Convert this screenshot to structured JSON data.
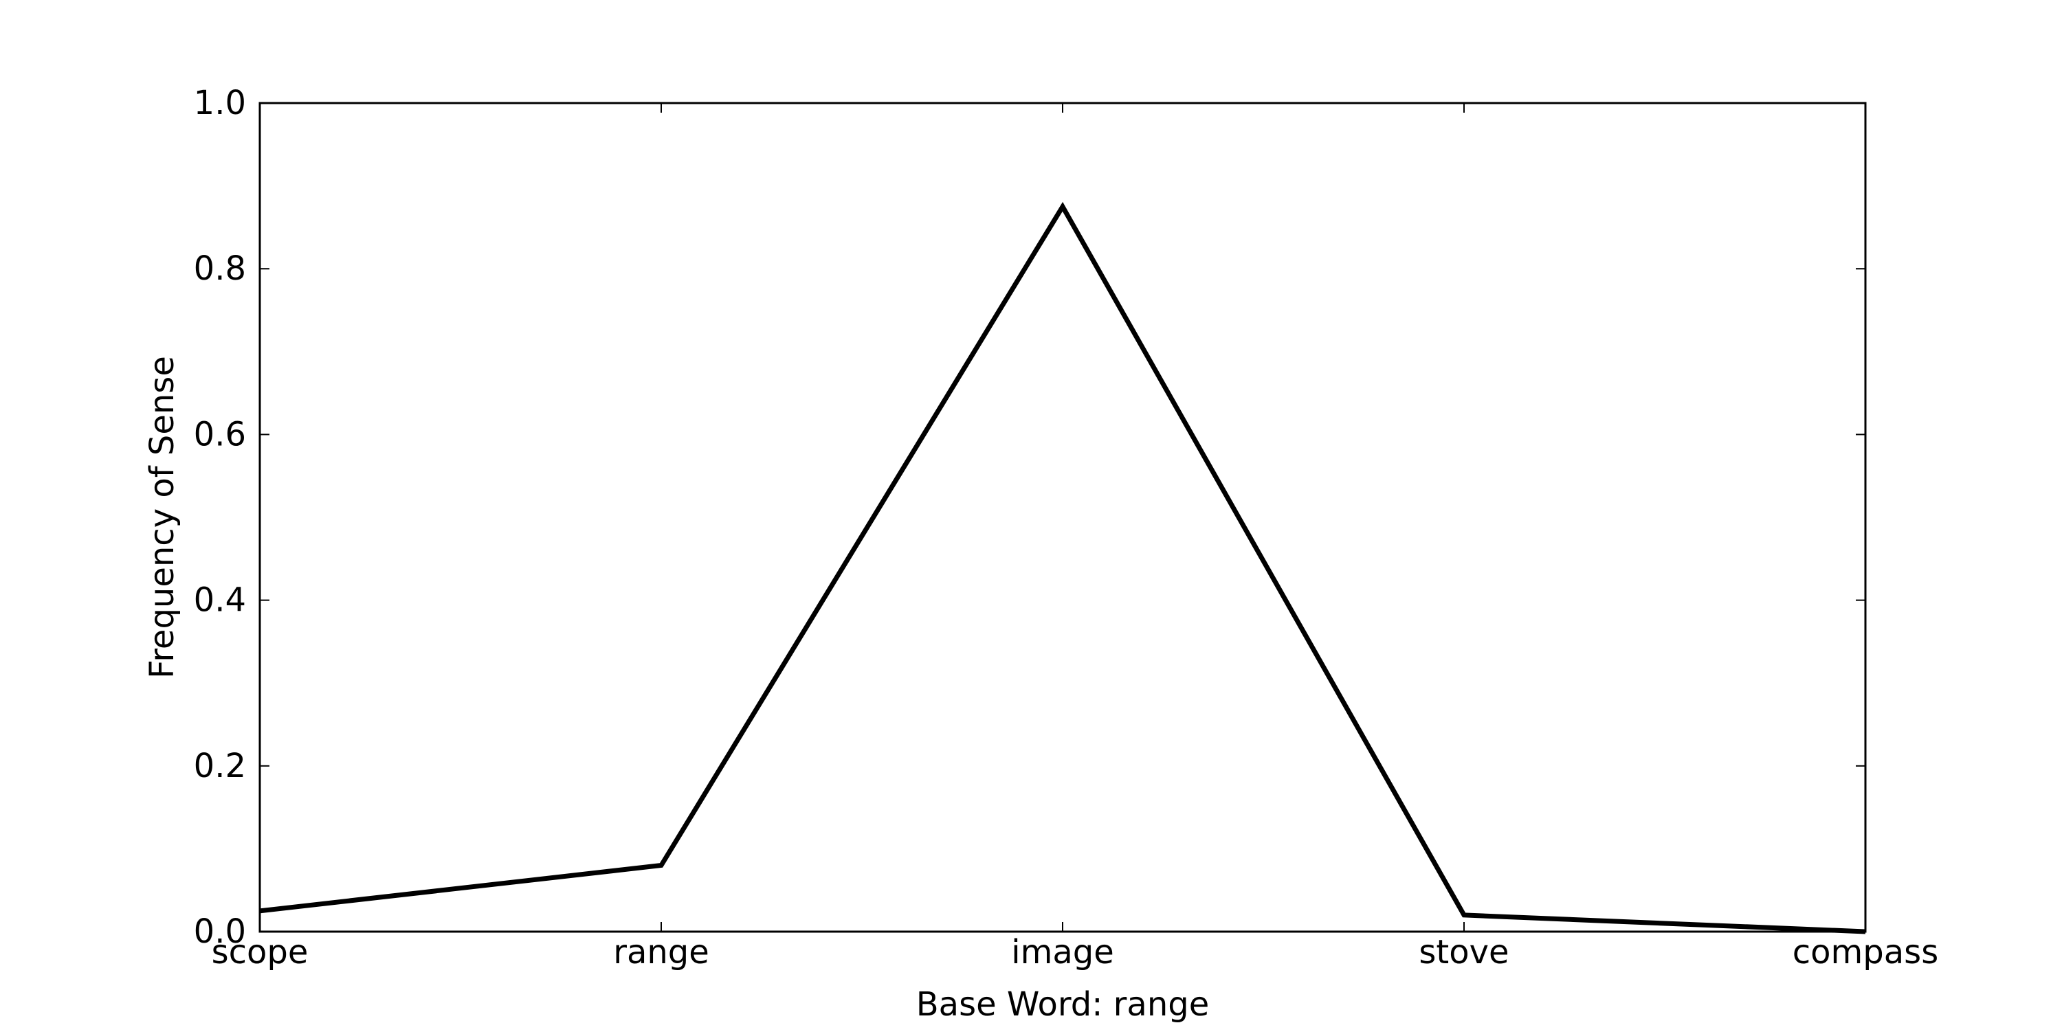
{
  "chart_data": {
    "type": "line",
    "categories": [
      "scope",
      "range",
      "image",
      "stove",
      "compass"
    ],
    "values": [
      0.025,
      0.08,
      0.875,
      0.02,
      0.0
    ],
    "xlabel": "Base Word: range",
    "ylabel": "Frequency of Sense",
    "ylim": [
      0.0,
      1.0
    ],
    "yticks": [
      "0.0",
      "0.2",
      "0.4",
      "0.6",
      "0.8",
      "1.0"
    ],
    "grid": false,
    "line_color": "#000000"
  }
}
